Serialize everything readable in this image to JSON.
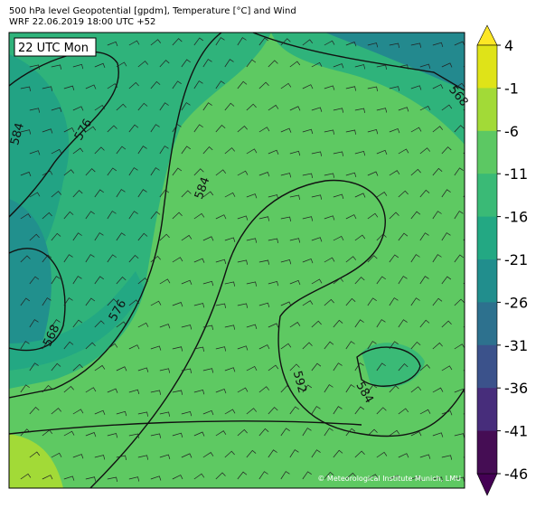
{
  "header": {
    "title": "500 hPa level Geopotential [gpdm], Temperature [°C] and Wind",
    "subtitle": "WRF 22.06.2019 18:00 UTC +52"
  },
  "map": {
    "time_label": "22 UTC Mon",
    "contour_labels": [
      "584",
      "576",
      "584",
      "576",
      "568",
      "592",
      "584",
      "568"
    ],
    "credit": "© Meteorological Institute Munich, LMU"
  },
  "colorbar": {
    "ticks": [
      "4",
      "-1",
      "-6",
      "-11",
      "-16",
      "-21",
      "-26",
      "-31",
      "-36",
      "-41",
      "-46"
    ]
  }
}
